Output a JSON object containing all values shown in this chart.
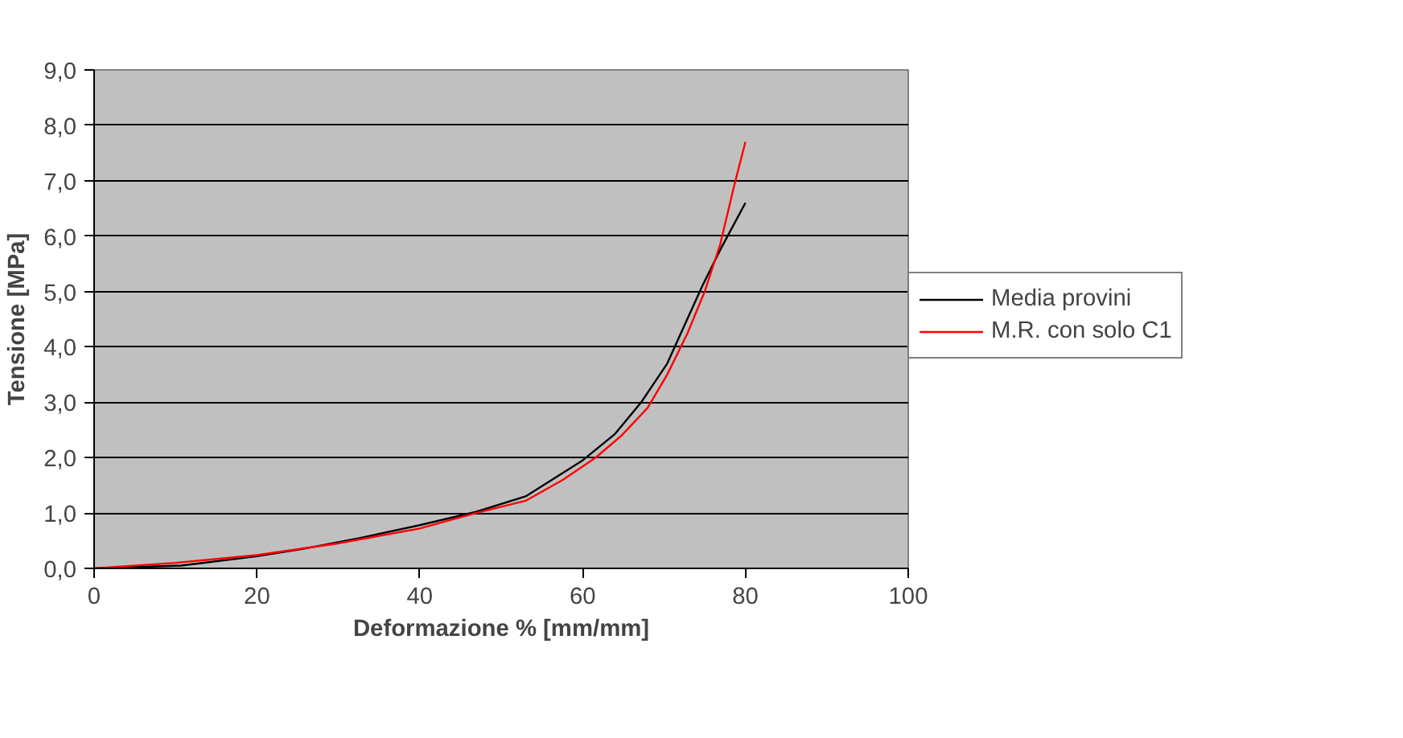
{
  "chart_data": {
    "type": "line",
    "xlabel": "Deformazione % [mm/mm]",
    "ylabel": "Tensione [MPa]",
    "xlim": [
      0,
      100
    ],
    "xticks": [
      0,
      20,
      40,
      60,
      80,
      100
    ],
    "ylim": [
      0,
      9
    ],
    "yticks": [
      {
        "value": 0,
        "label": "0,0"
      },
      {
        "value": 1,
        "label": "1,0"
      },
      {
        "value": 2,
        "label": "2,0"
      },
      {
        "value": 3,
        "label": "3,0"
      },
      {
        "value": 4,
        "label": "4,0"
      },
      {
        "value": 5,
        "label": "5,0"
      },
      {
        "value": 6,
        "label": "6,0"
      },
      {
        "value": 7,
        "label": "7,0"
      },
      {
        "value": 8,
        "label": "8,0"
      },
      {
        "value": 9,
        "label": "9,0"
      }
    ],
    "grid": "y",
    "legend": "right",
    "marker": "none",
    "line_style": "solid",
    "series": [
      {
        "name": "Media provini",
        "color": "#000000",
        "x": [
          0,
          10.7,
          20,
          25.6,
          32.7,
          40,
          46.9,
          53,
          60,
          64,
          67.2,
          70.4,
          74.7,
          76.9,
          80
        ],
        "values": [
          0,
          0.05,
          0.22,
          0.35,
          0.55,
          0.78,
          1.02,
          1.3,
          1.95,
          2.43,
          3.0,
          3.7,
          5.1,
          5.75,
          6.6
        ]
      },
      {
        "name": "M.R. con solo C1",
        "color": "#ff0000",
        "x": [
          0,
          10,
          20,
          29.9,
          40,
          46.9,
          53,
          57.6,
          61.6,
          64.8,
          68,
          70.4,
          72.9,
          75,
          76.9,
          78.6,
          80
        ],
        "values": [
          0,
          0.1,
          0.24,
          0.45,
          0.72,
          1.0,
          1.22,
          1.6,
          2.0,
          2.4,
          2.9,
          3.5,
          4.25,
          5.0,
          5.85,
          6.9,
          7.7
        ]
      }
    ]
  }
}
